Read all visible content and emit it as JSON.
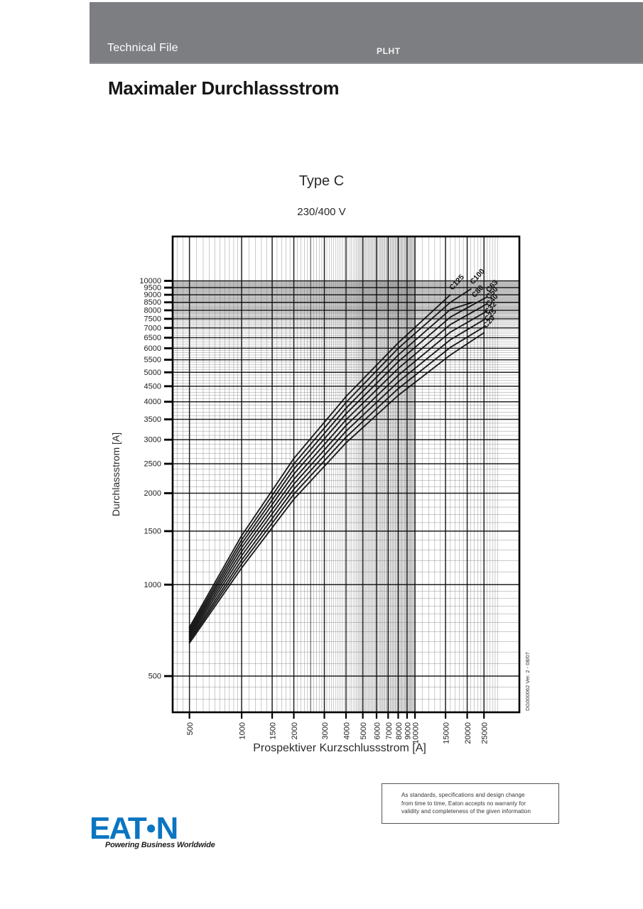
{
  "header": {
    "left_text": "Technical File",
    "center_text": "PLHT",
    "bar_color": "#7d7e82"
  },
  "title": "Maximaler Durchlassstrom",
  "chart_data": {
    "type": "line",
    "title": "Type C",
    "subtitle": "230/400 V",
    "xlabel": "Prospektiver Kurzschlussstrom [A]",
    "ylabel": "Durchlassstrom  [A]",
    "x_scale": "log",
    "y_scale": "log",
    "xlim": [
      400,
      40000
    ],
    "ylim": [
      380,
      14000
    ],
    "x_ticks": [
      500,
      1000,
      1500,
      2000,
      3000,
      4000,
      5000,
      6000,
      7000,
      8000,
      9000,
      10000,
      15000,
      20000,
      25000
    ],
    "y_ticks": [
      500,
      1000,
      1500,
      2000,
      2500,
      3000,
      3500,
      4000,
      4500,
      5000,
      5500,
      6000,
      6500,
      7000,
      7500,
      8000,
      8500,
      9000,
      9500,
      10000
    ],
    "grid": "log graph paper, fine minor lines",
    "legend_position": "curve-end labels, rotated along curves",
    "doc_id": "DG000062  Ver. 2 - 08/07",
    "series": [
      {
        "name": "C125",
        "points": [
          [
            500,
            723
          ],
          [
            1000,
            1450
          ],
          [
            2000,
            2600
          ],
          [
            4000,
            4160
          ],
          [
            8000,
            6250
          ],
          [
            16000,
            9000
          ]
        ]
      },
      {
        "name": "C100",
        "points": [
          [
            500,
            711
          ],
          [
            1000,
            1405
          ],
          [
            2000,
            2495
          ],
          [
            4000,
            3980
          ],
          [
            8000,
            6000
          ],
          [
            16000,
            8500
          ],
          [
            21000,
            9400
          ]
        ]
      },
      {
        "name": "C80",
        "points": [
          [
            500,
            700
          ],
          [
            1000,
            1365
          ],
          [
            2000,
            2400
          ],
          [
            4000,
            3810
          ],
          [
            8000,
            5700
          ],
          [
            16000,
            8050
          ],
          [
            21500,
            8500
          ]
        ]
      },
      {
        "name": "C63",
        "points": [
          [
            500,
            690
          ],
          [
            1000,
            1325
          ],
          [
            2000,
            2310
          ],
          [
            4000,
            3650
          ],
          [
            8000,
            5420
          ],
          [
            16000,
            7600
          ],
          [
            26000,
            8850
          ]
        ]
      },
      {
        "name": "C50",
        "points": [
          [
            500,
            680
          ],
          [
            1000,
            1285
          ],
          [
            2000,
            2220
          ],
          [
            4000,
            3490
          ],
          [
            8000,
            5150
          ],
          [
            16000,
            7180
          ],
          [
            26000,
            8400
          ]
        ]
      },
      {
        "name": "C40",
        "points": [
          [
            500,
            670
          ],
          [
            1000,
            1245
          ],
          [
            2000,
            2140
          ],
          [
            4000,
            3340
          ],
          [
            8000,
            4890
          ],
          [
            16000,
            6780
          ],
          [
            26000,
            7950
          ]
        ]
      },
      {
        "name": "C32",
        "points": [
          [
            500,
            660
          ],
          [
            1000,
            1205
          ],
          [
            2000,
            2060
          ],
          [
            4000,
            3200
          ],
          [
            8000,
            4650
          ],
          [
            16000,
            6400
          ],
          [
            25500,
            7500
          ]
        ]
      },
      {
        "name": "C25",
        "points": [
          [
            500,
            651
          ],
          [
            1000,
            1170
          ],
          [
            2000,
            1985
          ],
          [
            4000,
            3060
          ],
          [
            8000,
            4420
          ],
          [
            16000,
            6040
          ],
          [
            25500,
            7100
          ]
        ]
      },
      {
        "name": "C20",
        "points": [
          [
            500,
            642
          ],
          [
            1000,
            1135
          ],
          [
            2000,
            1910
          ],
          [
            4000,
            2930
          ],
          [
            8000,
            4200
          ],
          [
            16000,
            5700
          ],
          [
            25000,
            6750
          ]
        ]
      }
    ]
  },
  "footer": {
    "disclaimer_lines": [
      "As standards, specifications and design change",
      "from time to time, Eaton accepts no warranty for",
      "validity and completeness of the given information"
    ],
    "logo": {
      "part1": "EAT",
      "dot": "●",
      "part2": "N",
      "color": "#0b75c1",
      "tagline": "Powering Business Worldwide"
    }
  }
}
